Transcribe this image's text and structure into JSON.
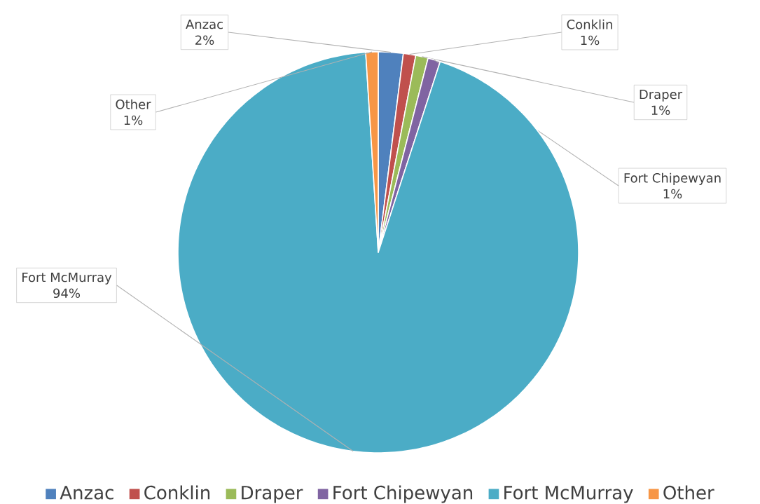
{
  "chart_data": {
    "type": "pie",
    "categories": [
      "Anzac",
      "Conklin",
      "Draper",
      "Fort Chipewyan",
      "Fort McMurray",
      "Other"
    ],
    "values": [
      2,
      1,
      1,
      1,
      94,
      1
    ],
    "value_labels": [
      "2%",
      "1%",
      "1%",
      "1%",
      "94%",
      "1%"
    ],
    "colors": [
      "#4f81bd",
      "#c0504d",
      "#9bbb59",
      "#8064a2",
      "#4bacc6",
      "#f79646"
    ],
    "legend": "bottom"
  }
}
